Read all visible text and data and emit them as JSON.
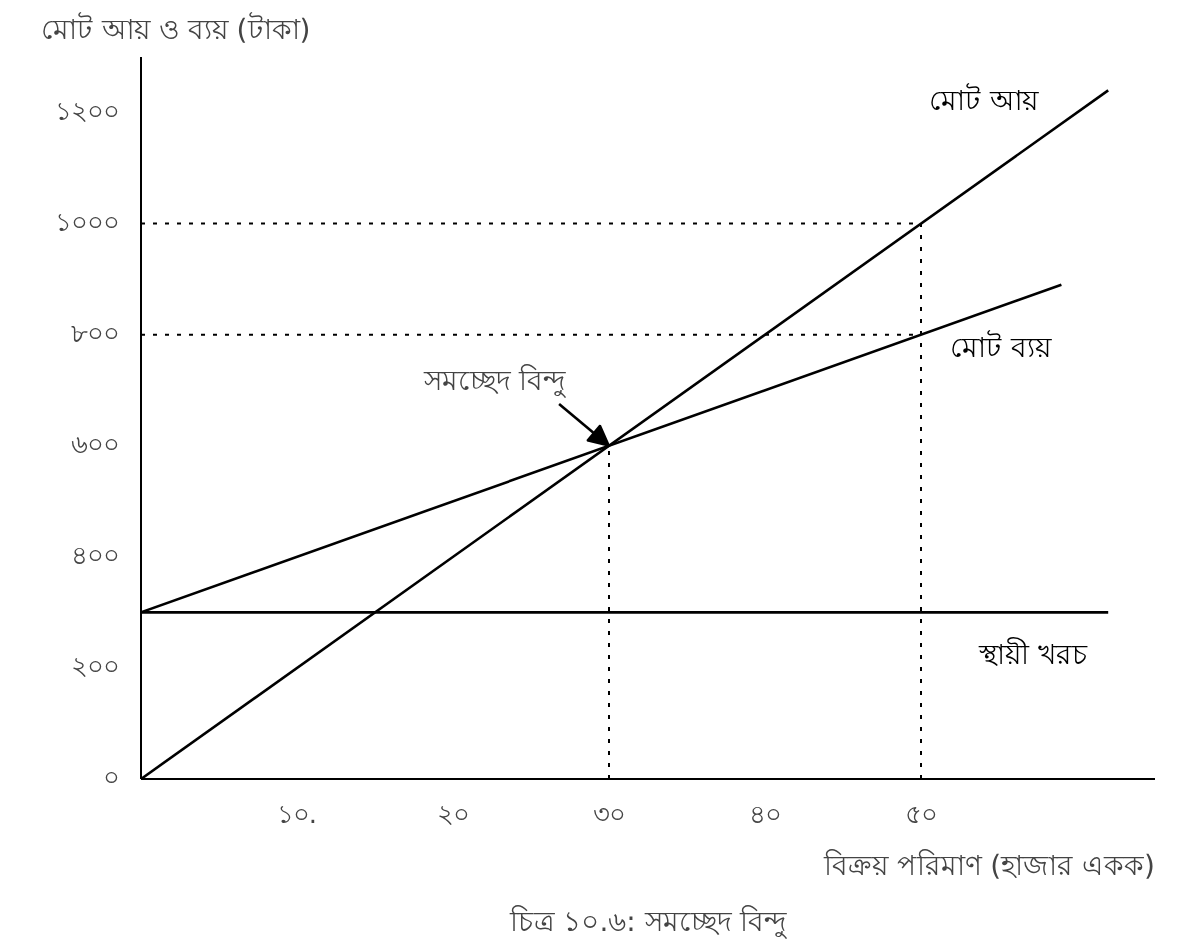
{
  "chart_data": {
    "type": "line",
    "ylabel": "মোট আয় ও ব্যয় (টাকা)",
    "xlabel": "বিক্রয় পরিমাণ (হাজার একক)",
    "xlim": [
      0,
      65
    ],
    "ylim": [
      0,
      1300
    ],
    "xticks": [
      {
        "value": 10,
        "label": "১০."
      },
      {
        "value": 20,
        "label": "২০"
      },
      {
        "value": 30,
        "label": "৩০"
      },
      {
        "value": 40,
        "label": "৪০"
      },
      {
        "value": 50,
        "label": "৫০"
      }
    ],
    "yticks": [
      {
        "value": 0,
        "label": "০"
      },
      {
        "value": 200,
        "label": "২০০"
      },
      {
        "value": 400,
        "label": "৪০০"
      },
      {
        "value": 600,
        "label": "৬০০"
      },
      {
        "value": 800,
        "label": "৮০০"
      },
      {
        "value": 1000,
        "label": "১০০০"
      },
      {
        "value": 1200,
        "label": "১২০০"
      }
    ],
    "series": [
      {
        "name": "মোট আয়",
        "color": "#000000",
        "x": [
          0,
          62
        ],
        "values": [
          0,
          1240
        ]
      },
      {
        "name": "মোট ব্যয়",
        "color": "#000000",
        "x": [
          0,
          59
        ],
        "values": [
          300,
          890
        ]
      },
      {
        "name": "স্থায়ী খরচ",
        "color": "#000000",
        "x": [
          0,
          62
        ],
        "values": [
          300,
          300
        ]
      }
    ],
    "ref_lines": [
      {
        "axis": "x",
        "value": 30,
        "line_style": "dotted"
      },
      {
        "axis": "x",
        "value": 50,
        "line_style": "dotted"
      },
      {
        "axis": "y",
        "value": 1000,
        "line_style": "dotted"
      },
      {
        "axis": "y",
        "value": 800,
        "line_style": "dotted"
      }
    ],
    "annotations": [
      {
        "text": "সমচ্ছেদ বিন্দু",
        "x": 30,
        "y": 600
      },
      "চিত্র ১০.৬: সমচ্ছেদ বিন্দু"
    ],
    "grid": false,
    "marker": "none",
    "line_style": "solid"
  }
}
